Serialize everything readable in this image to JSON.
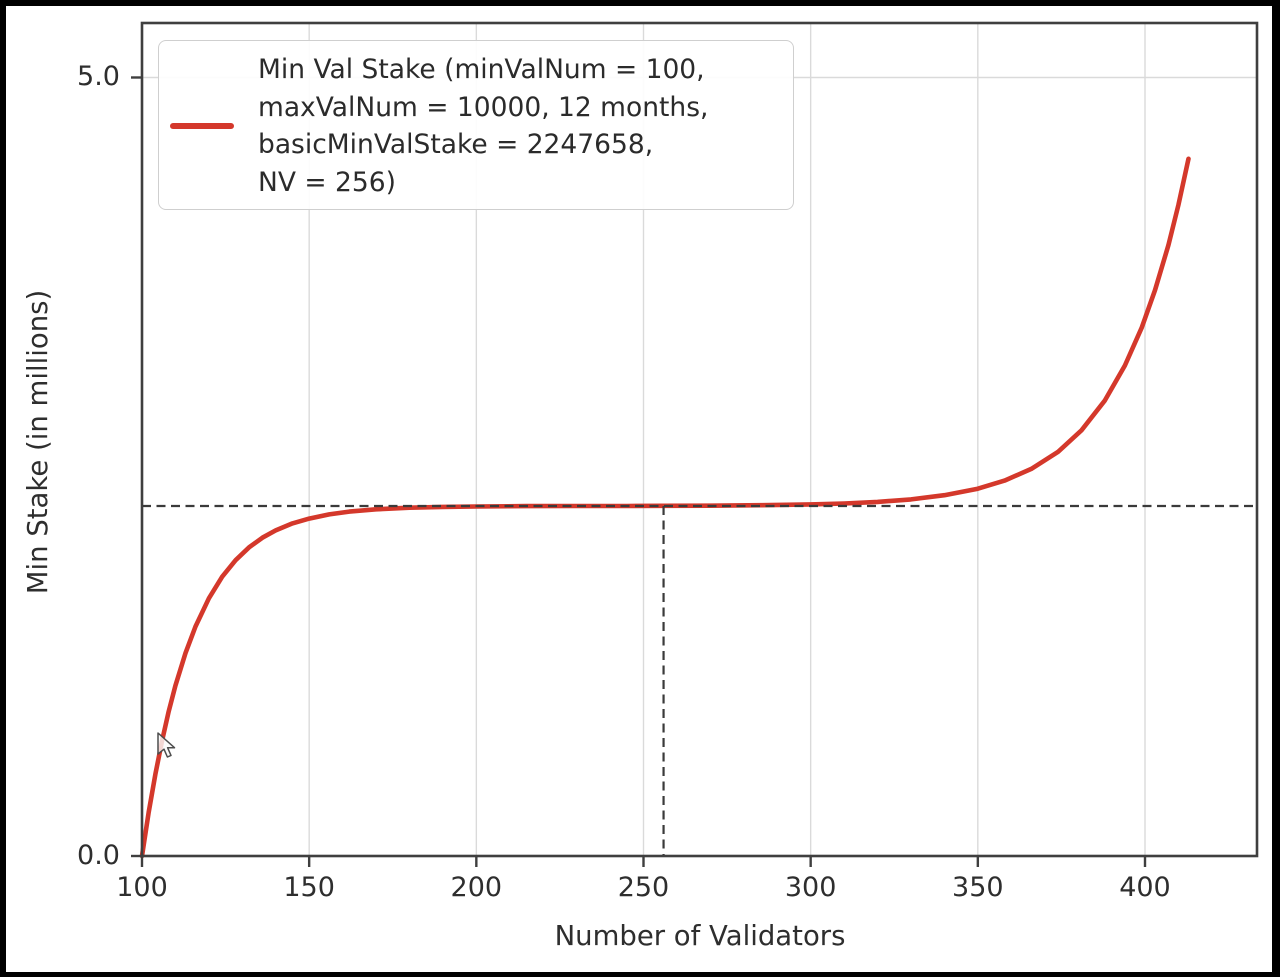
{
  "chart_data": {
    "type": "line",
    "xlabel": "Number of Validators",
    "ylabel": "Min Stake (in millions)",
    "xlim": [
      100,
      433.5
    ],
    "ylim": [
      0,
      5.35
    ],
    "xticks": [
      100,
      150,
      200,
      250,
      300,
      350,
      400
    ],
    "yticks": [
      0.0,
      5.0
    ],
    "ytick_labels": [
      "0.0",
      "5.0"
    ],
    "grid": true,
    "grid_color": "#dadada",
    "axis_color": "#3f3f3f",
    "legend_position": "upper left",
    "series": [
      {
        "name": "Min Val Stake (minValNum = 100, maxValNum = 10000, 12 months, basicMinValStake = 2247658, NV = 256)",
        "color": "#d4382b",
        "points": [
          [
            100,
            0
          ],
          [
            102,
            0.281
          ],
          [
            104,
            0.526
          ],
          [
            106,
            0.741
          ],
          [
            108,
            0.929
          ],
          [
            110,
            1.094
          ],
          [
            113,
            1.303
          ],
          [
            116,
            1.474
          ],
          [
            120,
            1.655
          ],
          [
            124,
            1.794
          ],
          [
            128,
            1.9
          ],
          [
            132,
            1.982
          ],
          [
            136,
            2.044
          ],
          [
            140,
            2.091
          ],
          [
            145,
            2.136
          ],
          [
            150,
            2.167
          ],
          [
            156,
            2.194
          ],
          [
            162,
            2.212
          ],
          [
            170,
            2.227
          ],
          [
            180,
            2.237
          ],
          [
            190,
            2.242
          ],
          [
            200,
            2.245
          ],
          [
            215,
            2.247
          ],
          [
            230,
            2.248
          ],
          [
            245,
            2.248
          ],
          [
            256,
            2.249
          ],
          [
            270,
            2.25
          ],
          [
            285,
            2.253
          ],
          [
            300,
            2.258
          ],
          [
            310,
            2.264
          ],
          [
            320,
            2.274
          ],
          [
            330,
            2.29
          ],
          [
            340,
            2.317
          ],
          [
            350,
            2.359
          ],
          [
            358,
            2.411
          ],
          [
            366,
            2.486
          ],
          [
            374,
            2.596
          ],
          [
            381,
            2.734
          ],
          [
            388,
            2.926
          ],
          [
            394,
            3.15
          ],
          [
            399,
            3.393
          ],
          [
            403,
            3.634
          ],
          [
            407,
            3.923
          ],
          [
            410,
            4.181
          ],
          [
            413,
            4.478
          ]
        ]
      }
    ],
    "reference_lines": {
      "horizontal_y": 2.2477,
      "vertical_x": 256,
      "style": "dashed",
      "color": "#3a3a3a"
    }
  },
  "legend": {
    "lines": [
      "Min Val Stake (minValNum = 100,",
      "maxValNum = 10000, 12 months,",
      "basicMinValStake = 2247658,",
      "NV = 256)"
    ]
  },
  "cursor": {
    "visible": true,
    "type": "arrow"
  }
}
